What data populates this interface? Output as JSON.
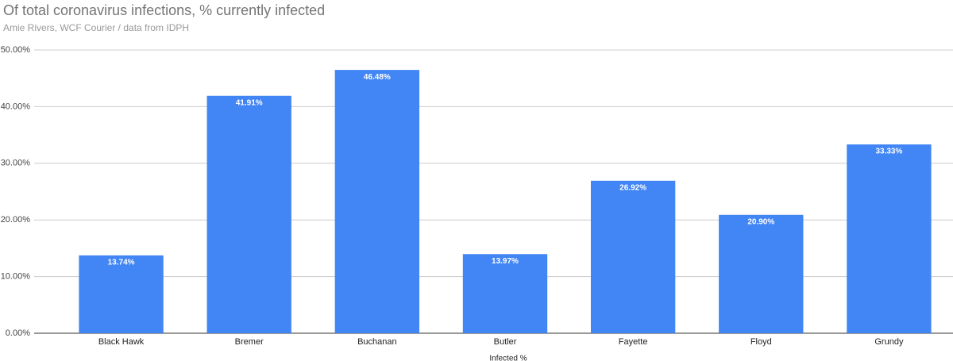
{
  "chart_data": {
    "type": "bar",
    "title": "Of total coronavirus infections, % currently infected",
    "subtitle": "Amie Rivers, WCF Courier / data from IDPH",
    "x_label": "Infected %",
    "categories": [
      "Black Hawk",
      "Bremer",
      "Buchanan",
      "Butler",
      "Fayette",
      "Floyd",
      "Grundy"
    ],
    "values": [
      13.74,
      41.91,
      46.48,
      13.97,
      26.92,
      20.9,
      33.33
    ],
    "value_labels": [
      "13.74%",
      "41.91%",
      "46.48%",
      "13.97%",
      "26.92%",
      "20.90%",
      "33.33%"
    ],
    "color": "#4285f4",
    "ylim": [
      0,
      50
    ],
    "yticks": [
      {
        "value": 0,
        "label": "0.00%"
      },
      {
        "value": 10,
        "label": "10.00%"
      },
      {
        "value": 20,
        "label": "20.00%"
      },
      {
        "value": 30,
        "label": "30.00%"
      },
      {
        "value": 40,
        "label": "40.00%"
      },
      {
        "value": 50,
        "label": "50.00%"
      }
    ],
    "grid": true
  }
}
